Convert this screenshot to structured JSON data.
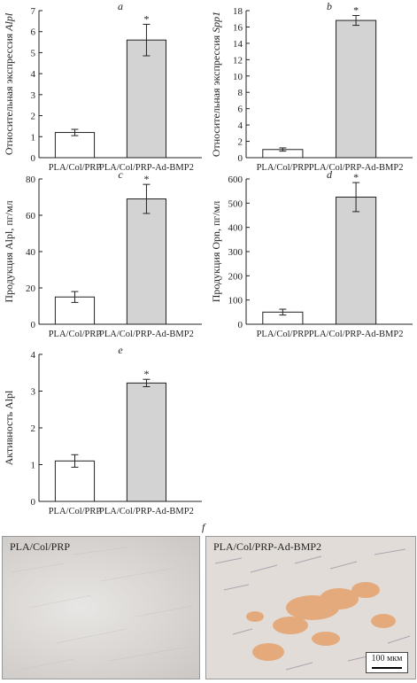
{
  "chart_data": [
    {
      "type": "bar",
      "panel": "a",
      "ylabel": "Относительная экспрессия",
      "ylabel_gene": "Alpl",
      "categories": [
        "PLA/Col/PRP",
        "PLA/Col/PRP-Ad-BMP2"
      ],
      "values": [
        1.2,
        5.6
      ],
      "errors": [
        0.15,
        0.75
      ],
      "significance": [
        "",
        "*"
      ],
      "ylim": [
        0,
        7
      ],
      "yticks": [
        0,
        1,
        2,
        3,
        4,
        5,
        6,
        7
      ],
      "bar_colors": [
        "#ffffff",
        "#d3d3d3"
      ]
    },
    {
      "type": "bar",
      "panel": "b",
      "ylabel": "Относительная экспрессия",
      "ylabel_gene": "Spp1",
      "categories": [
        "PLA/Col/PRP",
        "PLA/Col/PRP-Ad-BMP2"
      ],
      "values": [
        1.0,
        16.8
      ],
      "errors": [
        0.2,
        0.6
      ],
      "significance": [
        "",
        "*"
      ],
      "ylim": [
        0,
        18
      ],
      "yticks": [
        0,
        2,
        4,
        6,
        8,
        10,
        12,
        14,
        16,
        18
      ],
      "bar_colors": [
        "#ffffff",
        "#d3d3d3"
      ]
    },
    {
      "type": "bar",
      "panel": "c",
      "ylabel": "Продукция Alpl, пг/мл",
      "ylabel_gene": "",
      "categories": [
        "PLA/Col/PRP",
        "PLA/Col/PRP-Ad-BMP2"
      ],
      "values": [
        15,
        69
      ],
      "errors": [
        3,
        8
      ],
      "significance": [
        "",
        "*"
      ],
      "ylim": [
        0,
        80
      ],
      "yticks": [
        0,
        20,
        40,
        60,
        80
      ],
      "bar_colors": [
        "#ffffff",
        "#d3d3d3"
      ]
    },
    {
      "type": "bar",
      "panel": "d",
      "ylabel": "Продукция Opn, пг/мл",
      "ylabel_gene": "",
      "categories": [
        "PLA/Col/PRP",
        "PLA/Col/PRP-Ad-BMP2"
      ],
      "values": [
        50,
        525
      ],
      "errors": [
        12,
        60
      ],
      "significance": [
        "",
        "*"
      ],
      "ylim": [
        0,
        600
      ],
      "yticks": [
        0,
        100,
        200,
        300,
        400,
        500,
        600
      ],
      "bar_colors": [
        "#ffffff",
        "#d3d3d3"
      ]
    },
    {
      "type": "bar",
      "panel": "e",
      "ylabel": "Активность Alpl",
      "ylabel_gene": "",
      "categories": [
        "PLA/Col/PRP",
        "PLA/Col/PRP-Ad-BMP2"
      ],
      "values": [
        1.1,
        3.22
      ],
      "errors": [
        0.17,
        0.1
      ],
      "significance": [
        "",
        "*"
      ],
      "ylim": [
        0,
        4
      ],
      "yticks": [
        0,
        1,
        2,
        3,
        4
      ],
      "bar_colors": [
        "#ffffff",
        "#d3d3d3"
      ]
    }
  ],
  "figure_f": {
    "panel": "f",
    "left_label": "PLA/Col/PRP",
    "right_label": "PLA/Col/PRP-Ad-BMP2",
    "scale_bar": "100 мкм"
  }
}
